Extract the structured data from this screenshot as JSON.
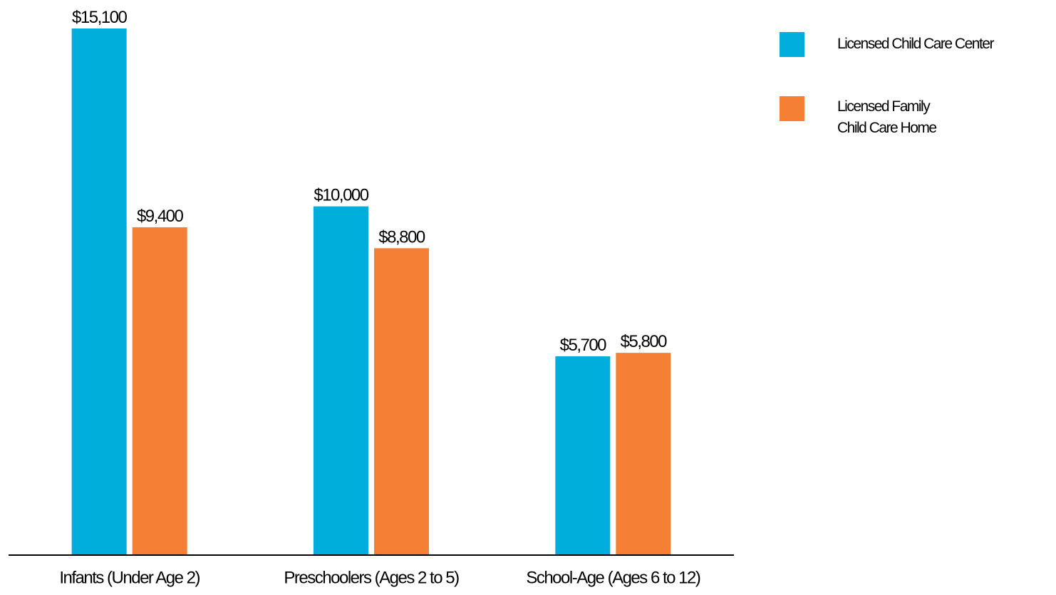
{
  "chart_data": {
    "type": "bar",
    "categories": [
      "Infants (Under Age 2)",
      "Preschoolers (Ages 2 to 5)",
      "School-Age (Ages 6 to 12)"
    ],
    "series": [
      {
        "name": "Licensed Child Care Center",
        "color": "#00aedb",
        "values": [
          15100,
          10000,
          5700
        ],
        "value_labels": [
          "$15,100",
          "$10,000",
          "$5,700"
        ]
      },
      {
        "name": "Licensed Family\nChild Care Home",
        "color": "#f47f35",
        "values": [
          9400,
          8800,
          5800
        ],
        "value_labels": [
          "$9,400",
          "$8,800",
          "$5,800"
        ]
      }
    ],
    "legend": "top-right"
  }
}
